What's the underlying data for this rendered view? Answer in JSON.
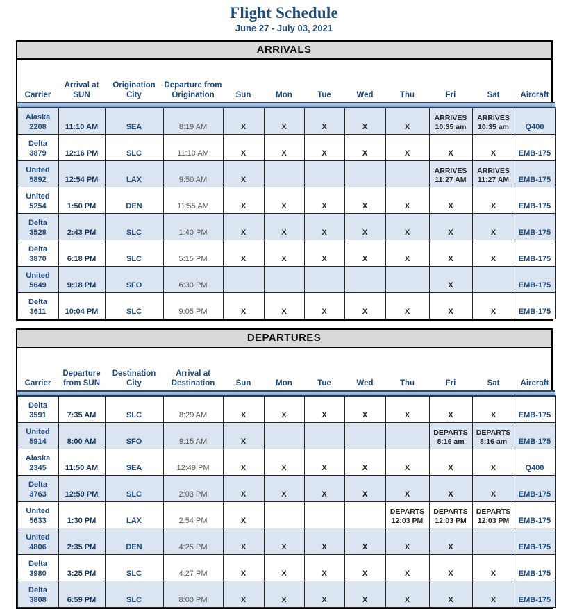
{
  "page": {
    "title": "Flight Schedule",
    "subtitle": "June 27 - July 03, 2021"
  },
  "colors": {
    "title_navy": "#1f4e79",
    "accent_navy": "#1f497d",
    "row_shade_blue": "#dbe5f1",
    "section_header_grey": "#d9d9d9",
    "header_bar_blue": "#8fafd4",
    "muted_time_grey": "#595959"
  },
  "tables": [
    {
      "name": "arrivals",
      "section_title": "ARRIVALS",
      "columns": [
        "Carrier",
        "Arrival at SUN",
        "Origination City",
        "Departure from Origination",
        "Sun",
        "Mon",
        "Tue",
        "Wed",
        "Thu",
        "Fri",
        "Sat",
        "Aircraft"
      ],
      "rows": [
        {
          "carrier": "Alaska",
          "flight": "2208",
          "sun_time": "11:10 AM",
          "city": "SEA",
          "other_time": "8:19 AM",
          "days": [
            "X",
            "X",
            "X",
            "X",
            "X",
            {
              "label": "ARRIVES",
              "time": "10:35 am"
            },
            {
              "label": "ARRIVES",
              "time": "10:35 am"
            }
          ],
          "aircraft": "Q400",
          "shaded": true
        },
        {
          "carrier": "Delta",
          "flight": "3879",
          "sun_time": "12:16 PM",
          "city": "SLC",
          "other_time": "11:10 AM",
          "days": [
            "X",
            "X",
            "X",
            "X",
            "X",
            "X",
            "X"
          ],
          "aircraft": "EMB-175",
          "shaded": false
        },
        {
          "carrier": "United",
          "flight": "5892",
          "sun_time": "12:54 PM",
          "city": "LAX",
          "other_time": "9:50 AM",
          "days": [
            "X",
            "",
            "",
            "",
            "",
            {
              "label": "ARRIVES",
              "time": "11:27 AM"
            },
            {
              "label": "ARRIVES",
              "time": "11:27 AM"
            }
          ],
          "aircraft": "EMB-175",
          "shaded": true
        },
        {
          "carrier": "United",
          "flight": "5254",
          "sun_time": "1:50 PM",
          "city": "DEN",
          "other_time": "11:55 AM",
          "days": [
            "X",
            "X",
            "X",
            "X",
            "X",
            "X",
            "X"
          ],
          "aircraft": "EMB-175",
          "shaded": false
        },
        {
          "carrier": "Delta",
          "flight": "3528",
          "sun_time": "2:43 PM",
          "city": "SLC",
          "other_time": "1:40 PM",
          "days": [
            "X",
            "X",
            "X",
            "X",
            "X",
            "X",
            "X"
          ],
          "aircraft": "EMB-175",
          "shaded": true
        },
        {
          "carrier": "Delta",
          "flight": "3870",
          "sun_time": "6:18 PM",
          "city": "SLC",
          "other_time": "5:15 PM",
          "days": [
            "X",
            "X",
            "X",
            "X",
            "X",
            "X",
            "X"
          ],
          "aircraft": "EMB-175",
          "shaded": false
        },
        {
          "carrier": "United",
          "flight": "5649",
          "sun_time": "9:18 PM",
          "city": "SFO",
          "other_time": "6:30 PM",
          "days": [
            "",
            "",
            "",
            "",
            "",
            "X",
            ""
          ],
          "aircraft": "EMB-175",
          "shaded": true
        },
        {
          "carrier": "Delta",
          "flight": "3611",
          "sun_time": "10:04 PM",
          "city": "SLC",
          "other_time": "9:05 PM",
          "days": [
            "X",
            "X",
            "X",
            "X",
            "X",
            "X",
            "X"
          ],
          "aircraft": "EMB-175",
          "shaded": false
        }
      ]
    },
    {
      "name": "departures",
      "section_title": "DEPARTURES",
      "columns": [
        "Carrier",
        "Departure from SUN",
        "Destination City",
        "Arrival at Destination",
        "Sun",
        "Mon",
        "Tue",
        "Wed",
        "Thu",
        "Fri",
        "Sat",
        "Aircraft"
      ],
      "rows": [
        {
          "carrier": "Delta",
          "flight": "3591",
          "sun_time": "7:35 AM",
          "city": "SLC",
          "other_time": "8:29 AM",
          "days": [
            "X",
            "X",
            "X",
            "X",
            "X",
            "X",
            "X"
          ],
          "aircraft": "EMB-175",
          "shaded": false
        },
        {
          "carrier": "United",
          "flight": "5914",
          "sun_time": "8:00 AM",
          "city": "SFO",
          "other_time": "9:15 AM",
          "days": [
            "X",
            "",
            "",
            "",
            "",
            {
              "label": "DEPARTS",
              "time": "8:16 am"
            },
            {
              "label": "DEPARTS",
              "time": "8:16 am"
            }
          ],
          "aircraft": "EMB-175",
          "shaded": true
        },
        {
          "carrier": "Alaska",
          "flight": "2345",
          "sun_time": "11:50 AM",
          "city": "SEA",
          "other_time": "12:49 PM",
          "days": [
            "X",
            "X",
            "X",
            "X",
            "X",
            "X",
            "X"
          ],
          "aircraft": "Q400",
          "shaded": false
        },
        {
          "carrier": "Delta",
          "flight": "3763",
          "sun_time": "12:59 PM",
          "city": "SLC",
          "other_time": "2:03 PM",
          "days": [
            "X",
            "X",
            "X",
            "X",
            "X",
            "X",
            "X"
          ],
          "aircraft": "EMB-175",
          "shaded": true
        },
        {
          "carrier": "United",
          "flight": "5633",
          "sun_time": "1:30 PM",
          "city": "LAX",
          "other_time": "2:54 PM",
          "days": [
            "X",
            "",
            "",
            "",
            {
              "label": "DEPARTS",
              "time": "12:03 PM"
            },
            {
              "label": "DEPARTS",
              "time": "12:03 PM"
            },
            {
              "label": "DEPARTS",
              "time": "12:03 PM"
            }
          ],
          "aircraft": "EMB-175",
          "shaded": false
        },
        {
          "carrier": "United",
          "flight": "4806",
          "sun_time": "2:35 PM",
          "city": "DEN",
          "other_time": "4:25 PM",
          "days": [
            "X",
            "X",
            "X",
            "X",
            "X",
            "X",
            ""
          ],
          "aircraft": "EMB-175",
          "shaded": true
        },
        {
          "carrier": "Delta",
          "flight": "3980",
          "sun_time": "3:25 PM",
          "city": "SLC",
          "other_time": "4:27 PM",
          "days": [
            "X",
            "X",
            "X",
            "X",
            "X",
            "X",
            "X"
          ],
          "aircraft": "EMB-175",
          "shaded": false
        },
        {
          "carrier": "Delta",
          "flight": "3808",
          "sun_time": "6:59 PM",
          "city": "SLC",
          "other_time": "8:00 PM",
          "days": [
            "X",
            "X",
            "X",
            "X",
            "X",
            "X",
            "X"
          ],
          "aircraft": "EMB-175",
          "shaded": true
        }
      ]
    }
  ]
}
